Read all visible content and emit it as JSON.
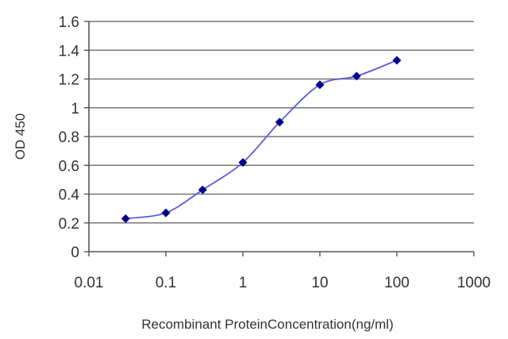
{
  "chart_data": {
    "type": "line",
    "title": "",
    "xlabel": "Recombinant ProteinConcentration(ng/ml)",
    "ylabel": "OD 450",
    "xscale": "log",
    "xlim": [
      0.01,
      1000
    ],
    "ylim": [
      0,
      1.6
    ],
    "x_ticks": [
      0.01,
      0.1,
      1,
      10,
      100,
      1000
    ],
    "x_tick_labels": [
      "0.01",
      "0.1",
      "1",
      "10",
      "100",
      "1000"
    ],
    "y_ticks": [
      0,
      0.2,
      0.4,
      0.6,
      0.8,
      1,
      1.2,
      1.4,
      1.6
    ],
    "y_tick_labels": [
      "0",
      "0.2",
      "0.4",
      "0.6",
      "0.8",
      "1",
      "1.2",
      "1.4",
      "1.6"
    ],
    "grid": "horizontal",
    "legend": "none",
    "series": [
      {
        "x": [
          0.03,
          0.1,
          0.3,
          1,
          3,
          10,
          30,
          100
        ],
        "y": [
          0.23,
          0.27,
          0.43,
          0.62,
          0.9,
          1.16,
          1.22,
          1.33
        ],
        "color": "#00008b"
      }
    ]
  }
}
